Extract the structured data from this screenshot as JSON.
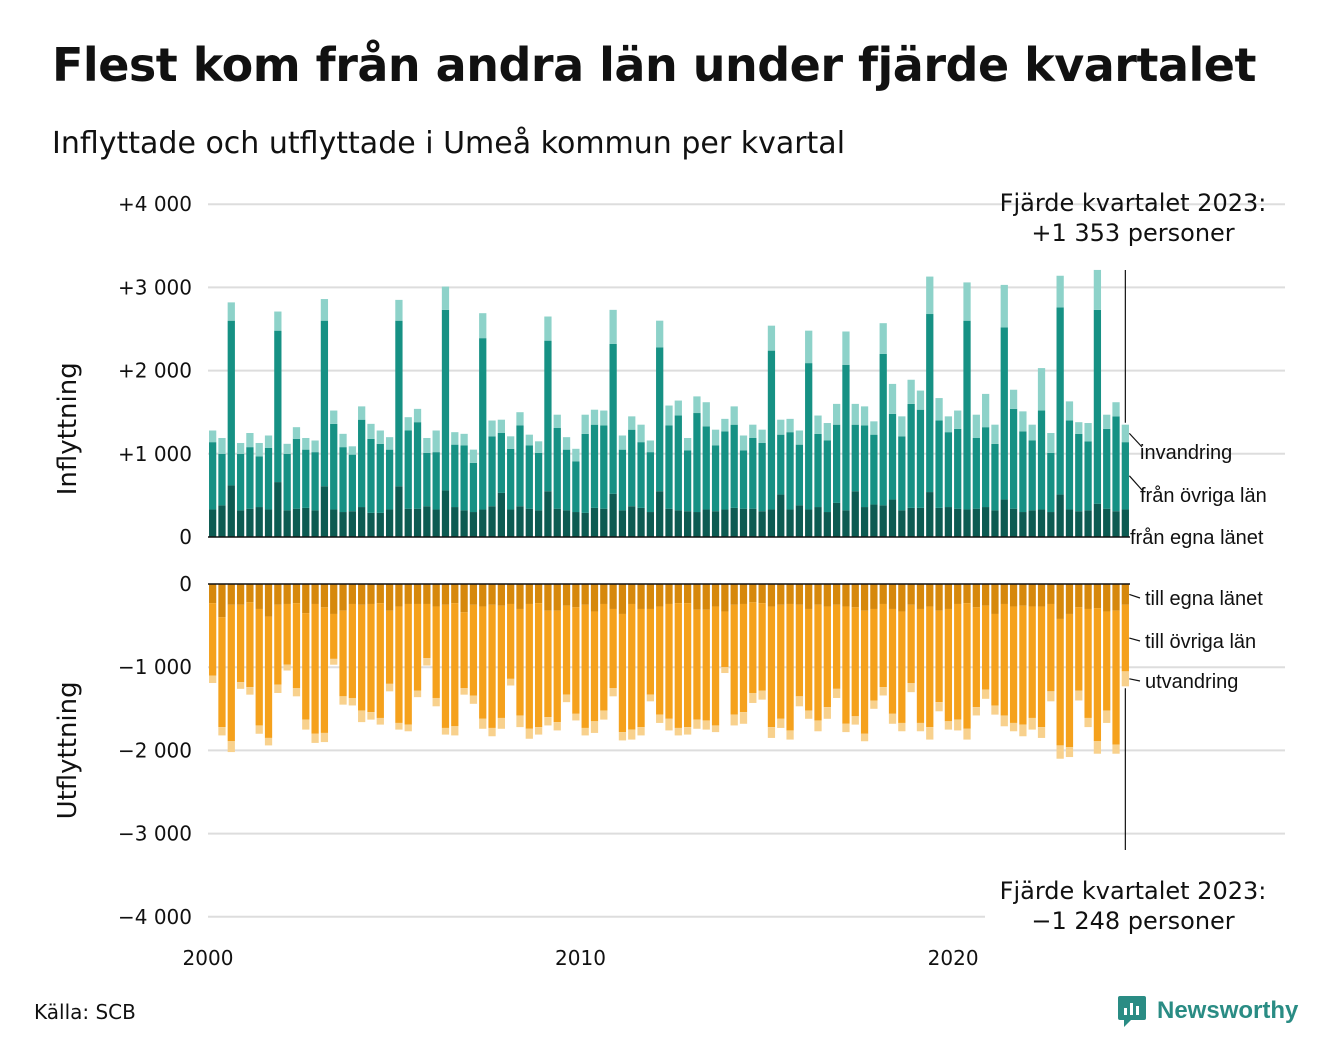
{
  "title": "Flest kom från andra län under fjärde kvartalet",
  "subtitle": "Inflyttade och utflyttade i Umeå kommun per kvartal",
  "source": "Källa: SCB",
  "logo_text": "Newsworthy",
  "colors": {
    "in_egna": "#0d5b52",
    "in_ovriga": "#169184",
    "in_invandring": "#8dd2c9",
    "out_egna": "#d6880c",
    "out_ovriga": "#f5a11c",
    "out_utvandring": "#f8d18d",
    "grid": "#dddddd",
    "logo": "#2a8c84"
  },
  "chart_data": {
    "type": "bar",
    "stacked": true,
    "x_start_year": 2000,
    "quarters_per_year": 4,
    "x_tick_labels": [
      "2000",
      "2010",
      "2020"
    ],
    "inflow": {
      "ylabel": "Inflyttning",
      "ylim": [
        0,
        4000
      ],
      "y_tick_labels": [
        "0",
        "+1 000",
        "+2 000",
        "+3 000",
        "+4 000"
      ],
      "series_labels": [
        "från egna länet",
        "från övriga län",
        "invandring"
      ],
      "from_own_county": [
        330,
        380,
        620,
        320,
        340,
        360,
        330,
        660,
        320,
        340,
        350,
        320,
        610,
        330,
        300,
        310,
        360,
        290,
        290,
        330,
        610,
        340,
        340,
        370,
        330,
        560,
        360,
        320,
        300,
        330,
        370,
        530,
        330,
        370,
        340,
        320,
        550,
        340,
        320,
        300,
        290,
        350,
        340,
        520,
        320,
        370,
        350,
        300,
        550,
        340,
        320,
        310,
        300,
        330,
        310,
        330,
        350,
        340,
        340,
        310,
        330,
        510,
        330,
        380,
        330,
        360,
        300,
        410,
        320,
        550,
        360,
        390,
        380,
        450,
        320,
        350,
        350,
        540,
        350,
        360,
        340,
        330,
        340,
        360,
        320,
        450,
        340,
        300,
        320,
        330,
        300,
        510,
        330,
        310,
        320,
        400,
        340,
        310,
        330
      ],
      "from_other_counties": [
        810,
        620,
        1980,
        680,
        740,
        610,
        740,
        1820,
        680,
        840,
        700,
        700,
        1990,
        1030,
        780,
        680,
        1050,
        890,
        830,
        720,
        1990,
        940,
        1040,
        640,
        690,
        2170,
        750,
        780,
        590,
        2060,
        840,
        720,
        730,
        970,
        760,
        690,
        1810,
        970,
        730,
        610,
        950,
        1000,
        1000,
        1800,
        730,
        920,
        790,
        720,
        1730,
        1000,
        1140,
        730,
        1190,
        1000,
        790,
        940,
        1000,
        700,
        850,
        820,
        1910,
        720,
        930,
        730,
        1760,
        880,
        860,
        940,
        1750,
        800,
        980,
        840,
        1820,
        1030,
        890,
        1250,
        1180,
        2140,
        1050,
        900,
        960,
        2270,
        850,
        960,
        800,
        2070,
        1200,
        970,
        840,
        1190,
        710,
        2250,
        1070,
        930,
        830,
        2330,
        960,
        1140,
        810
      ],
      "immigration": [
        140,
        190,
        220,
        130,
        170,
        160,
        150,
        230,
        120,
        140,
        140,
        140,
        260,
        160,
        160,
        100,
        160,
        180,
        160,
        150,
        250,
        160,
        160,
        180,
        260,
        280,
        150,
        140,
        160,
        300,
        190,
        160,
        150,
        160,
        130,
        140,
        290,
        160,
        150,
        150,
        230,
        180,
        180,
        410,
        170,
        160,
        210,
        140,
        320,
        240,
        180,
        150,
        200,
        290,
        190,
        150,
        220,
        180,
        160,
        160,
        300,
        180,
        160,
        170,
        390,
        220,
        210,
        250,
        400,
        250,
        230,
        160,
        370,
        360,
        240,
        290,
        230,
        450,
        270,
        190,
        220,
        460,
        280,
        400,
        230,
        510,
        230,
        240,
        190,
        510,
        240,
        380,
        230,
        140,
        220,
        480,
        170,
        170,
        210
      ]
    },
    "outflow": {
      "ylabel": "Utflyttning",
      "ylim": [
        -4000,
        0
      ],
      "y_tick_labels": [
        "0",
        "−1 000",
        "−2 000",
        "−3 000",
        "−4 000"
      ],
      "series_labels": [
        "till egna länet",
        "till övriga län",
        "utvandring"
      ],
      "to_own_county": [
        -230,
        -400,
        -250,
        -250,
        -220,
        -300,
        -390,
        -250,
        -240,
        -230,
        -350,
        -240,
        -280,
        -360,
        -320,
        -240,
        -250,
        -240,
        -230,
        -320,
        -270,
        -240,
        -240,
        -240,
        -270,
        -250,
        -230,
        -340,
        -250,
        -270,
        -250,
        -260,
        -240,
        -300,
        -240,
        -230,
        -320,
        -320,
        -260,
        -280,
        -250,
        -330,
        -240,
        -300,
        -360,
        -240,
        -300,
        -300,
        -270,
        -240,
        -230,
        -230,
        -310,
        -310,
        -270,
        -330,
        -250,
        -240,
        -220,
        -230,
        -270,
        -250,
        -240,
        -250,
        -300,
        -250,
        -270,
        -250,
        -270,
        -280,
        -320,
        -300,
        -240,
        -300,
        -330,
        -250,
        -300,
        -270,
        -320,
        -300,
        -240,
        -230,
        -280,
        -260,
        -360,
        -240,
        -270,
        -260,
        -270,
        -270,
        -240,
        -420,
        -360,
        -280,
        -300,
        -290,
        -330,
        -320,
        -250
      ],
      "to_other_counties": [
        -870,
        -1320,
        -1640,
        -930,
        -1020,
        -1400,
        -1460,
        -960,
        -730,
        -1020,
        -1280,
        -1560,
        -1510,
        -540,
        -1030,
        -1130,
        -1270,
        -1300,
        -1380,
        -880,
        -1400,
        -1450,
        -1040,
        -650,
        -1100,
        -1480,
        -1480,
        -910,
        -1090,
        -1350,
        -1480,
        -1350,
        -900,
        -1280,
        -1500,
        -1490,
        -1280,
        -1340,
        -1070,
        -1280,
        -1480,
        -1320,
        -1280,
        -950,
        -1420,
        -1510,
        -1420,
        -1030,
        -1300,
        -1380,
        -1500,
        -1490,
        -1320,
        -1330,
        -1430,
        -670,
        -1320,
        -1300,
        -1090,
        -1050,
        -1450,
        -1370,
        -1520,
        -1100,
        -1220,
        -1390,
        -1210,
        -1010,
        -1410,
        -1310,
        -1480,
        -1100,
        -1000,
        -1260,
        -1340,
        -940,
        -1370,
        -1450,
        -1100,
        -1350,
        -1390,
        -1510,
        -1200,
        -1010,
        -1100,
        -1340,
        -1400,
        -1430,
        -1340,
        -1450,
        -1050,
        -1520,
        -1600,
        -1000,
        -1310,
        -1600,
        -1190,
        -1610,
        -800
      ],
      "emigration": [
        -90,
        -100,
        -130,
        -80,
        -90,
        -100,
        -90,
        -100,
        -70,
        -100,
        -120,
        -110,
        -110,
        -70,
        -100,
        -90,
        -140,
        -90,
        -80,
        -90,
        -80,
        -80,
        -80,
        -90,
        -100,
        -80,
        -110,
        -80,
        -100,
        -120,
        -100,
        -130,
        -80,
        -140,
        -120,
        -90,
        -100,
        -100,
        -90,
        -80,
        -90,
        -140,
        -110,
        -100,
        -100,
        -120,
        -100,
        -80,
        -100,
        -140,
        -90,
        -90,
        -110,
        -110,
        -80,
        -70,
        -130,
        -140,
        -120,
        -110,
        -130,
        -110,
        -110,
        -120,
        -100,
        -130,
        -140,
        -110,
        -100,
        -100,
        -90,
        -100,
        -100,
        -120,
        -100,
        -110,
        -100,
        -150,
        -110,
        -100,
        -130,
        -130,
        -100,
        -110,
        -110,
        -130,
        -100,
        -140,
        -140,
        -130,
        -120,
        -160,
        -120,
        -120,
        -110,
        -150,
        -150,
        -110,
        -180
      ]
    },
    "annotation_top": "Fjärde kvartalet 2023:\n+1 353 personer",
    "annotation_bottom": "Fjärde kvartalet 2023:\n−1 248 personer",
    "gridlines": true,
    "legend_placement": "right, inline labels"
  }
}
